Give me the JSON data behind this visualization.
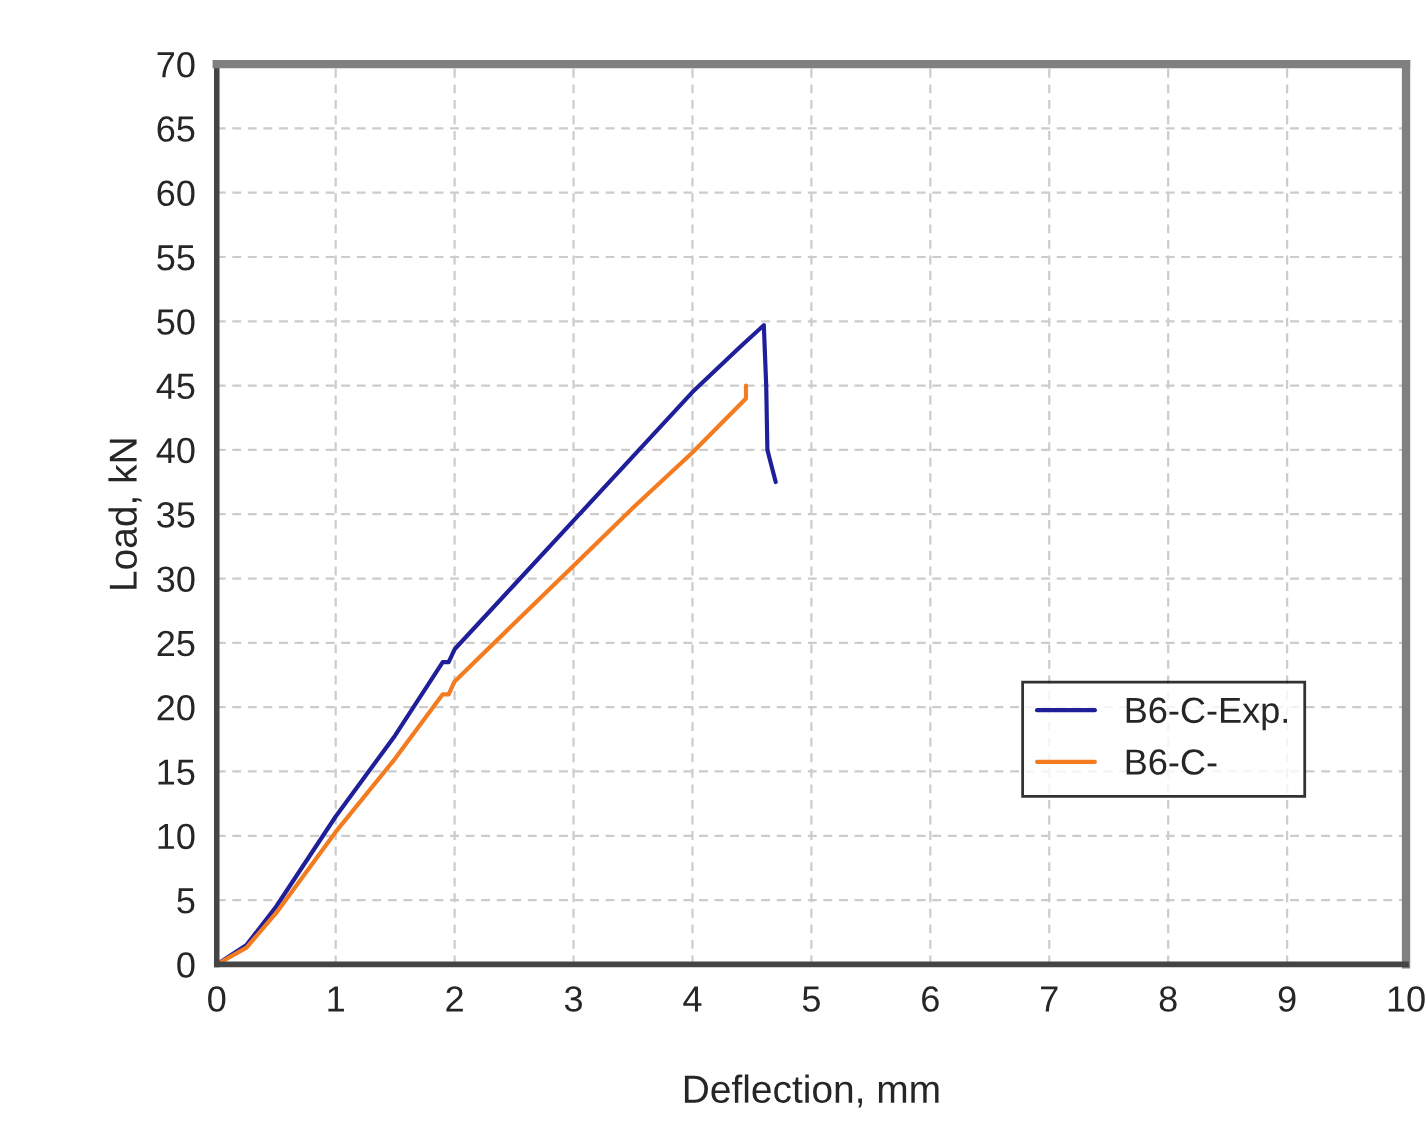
{
  "chart_data": {
    "type": "line",
    "xlabel": "Deflection, mm",
    "ylabel": "Load, kN",
    "xlim": [
      0,
      10
    ],
    "ylim": [
      0,
      70
    ],
    "xticks": [
      0,
      1,
      2,
      3,
      4,
      5,
      6,
      7,
      8,
      9,
      10
    ],
    "yticks": [
      0,
      5,
      10,
      15,
      20,
      25,
      30,
      35,
      40,
      45,
      50,
      55,
      60,
      65,
      70
    ],
    "grid": true,
    "legend": "right",
    "marker": "none",
    "line_style": "solid",
    "series": [
      {
        "name": "B6-C-Exp.",
        "color": "#1f1f9a",
        "x": [
          0,
          0.25,
          0.5,
          1,
          1.5,
          1.9,
          1.95,
          2.0,
          2.5,
          3,
          3.5,
          4,
          4.4,
          4.6,
          4.62,
          4.63,
          4.7
        ],
        "values": [
          0,
          1.5,
          4.5,
          11.5,
          17.8,
          23.5,
          23.5,
          24.5,
          29.5,
          34.5,
          39.5,
          44.5,
          48,
          49.7,
          45,
          40,
          37.5
        ]
      },
      {
        "name": "B6-C-",
        "color": "#f47c20",
        "x": [
          0,
          0.25,
          0.5,
          1,
          1.5,
          1.9,
          1.95,
          2.0,
          2.5,
          3,
          3.5,
          4,
          4.45,
          4.45
        ],
        "values": [
          0,
          1.3,
          4,
          10.3,
          16,
          21,
          21,
          22,
          26.5,
          31,
          35.5,
          39.8,
          44,
          45
        ]
      }
    ]
  }
}
